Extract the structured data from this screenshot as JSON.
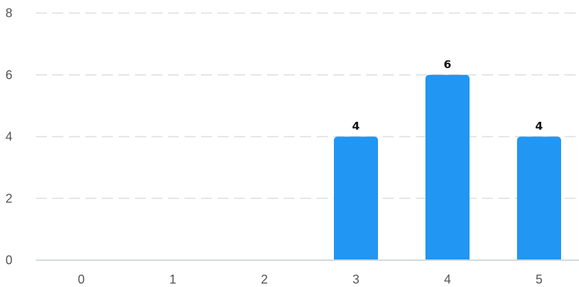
{
  "chart_data": {
    "type": "bar",
    "categories": [
      "0",
      "1",
      "2",
      "3",
      "4",
      "5"
    ],
    "values": [
      0,
      0,
      0,
      4,
      6,
      4
    ],
    "data_labels": [
      "",
      "",
      "",
      "4",
      "6",
      "4"
    ],
    "y_ticks": [
      "0",
      "2",
      "4",
      "6",
      "8"
    ],
    "ylim": [
      0,
      8
    ],
    "grid": true,
    "bar_color": "#2196f3"
  }
}
